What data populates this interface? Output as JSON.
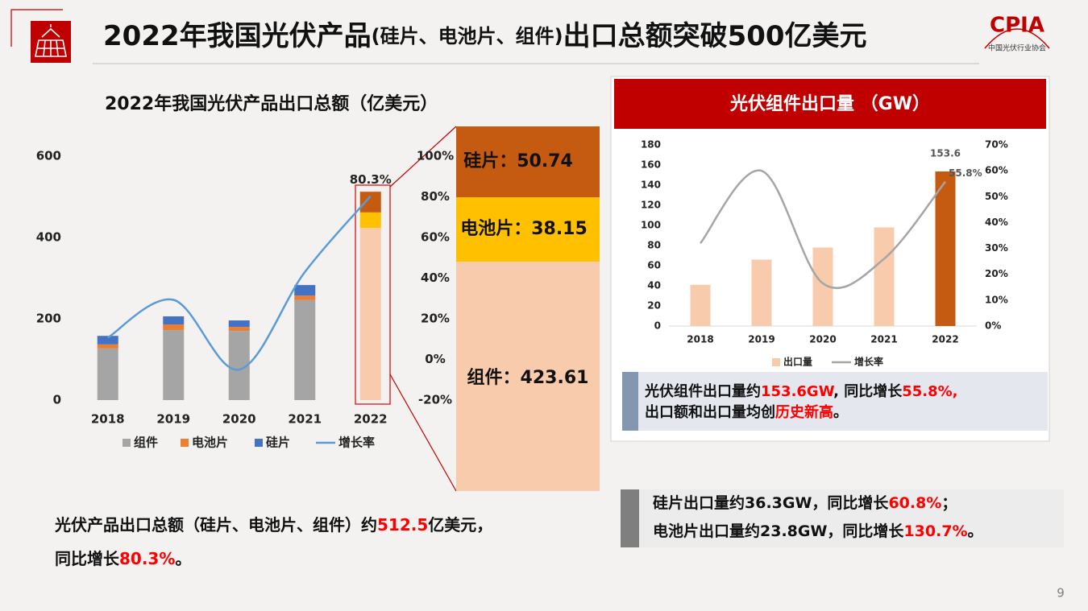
{
  "header": {
    "title_parts": [
      "2022年我国光伏产品",
      "(硅片、电池片、组件)",
      "出口总额突破500亿美元"
    ],
    "logo": "CPIA",
    "logo_subtitle": "中国光伏行业协会"
  },
  "chart_data": [
    {
      "type": "bar",
      "stacked": true,
      "title": "2022年我国光伏产品出口总额（亿美元）",
      "categories": [
        "2018",
        "2019",
        "2020",
        "2021",
        "2022"
      ],
      "series": [
        {
          "name": "组件",
          "color": "#a5a5a5",
          "colors": [
            "#a5a5a5",
            "#a5a5a5",
            "#a5a5a5",
            "#a5a5a5",
            "#f8cbad"
          ],
          "values": [
            127,
            172,
            170,
            246,
            423.61
          ]
        },
        {
          "name": "电池片",
          "color": "#ed7d31",
          "colors": [
            "#ed7d31",
            "#ed7d31",
            "#ed7d31",
            "#ed7d31",
            "#ffc000"
          ],
          "values": [
            10,
            14,
            10,
            11,
            38.15
          ]
        },
        {
          "name": "硅片",
          "color": "#4472c4",
          "colors": [
            "#4472c4",
            "#4472c4",
            "#4472c4",
            "#4472c4",
            "#c55a11"
          ],
          "values": [
            21,
            20,
            16,
            26,
            50.74
          ]
        },
        {
          "name": "增长率",
          "type": "line",
          "axis": "y2",
          "color": "#5b9bd5",
          "values": [
            10.7,
            29.3,
            -5,
            43,
            80.3
          ],
          "value_labels": [
            null,
            null,
            null,
            null,
            "80.3%"
          ]
        }
      ],
      "ylim": [
        0,
        600
      ],
      "yticks": [
        0,
        200,
        400,
        600
      ],
      "y2lim": [
        -20,
        100
      ],
      "y2ticks": [
        {
          "value": -20,
          "label": "-20%"
        },
        {
          "value": 0,
          "label": "0%"
        },
        {
          "value": 20,
          "label": "20%"
        },
        {
          "value": 40,
          "label": "40%"
        },
        {
          "value": 60,
          "label": "60%"
        },
        {
          "value": 80,
          "label": "80%"
        },
        {
          "value": 100,
          "label": "100%"
        }
      ],
      "grid": false,
      "legend": "bottom"
    },
    {
      "type": "bar",
      "title": "光伏组件出口量 （GW）",
      "categories": [
        "2018",
        "2019",
        "2020",
        "2021",
        "2022"
      ],
      "series": [
        {
          "name": "出口量",
          "color": "#f8cbad",
          "colors": [
            "#f8cbad",
            "#f8cbad",
            "#f8cbad",
            "#f8cbad",
            "#c55a11"
          ],
          "values": [
            41,
            66,
            78,
            98,
            153.6
          ],
          "value_labels": [
            null,
            null,
            null,
            null,
            "153.6"
          ]
        },
        {
          "name": "增长率",
          "type": "line",
          "axis": "y2",
          "color": "#a5a5a5",
          "values": [
            32,
            60,
            16.5,
            26,
            55.8
          ],
          "value_labels": [
            null,
            null,
            null,
            null,
            "55.8%"
          ]
        }
      ],
      "ylim": [
        0,
        180
      ],
      "yticks": [
        0,
        20,
        40,
        60,
        80,
        100,
        120,
        140,
        160,
        180
      ],
      "y2lim": [
        0,
        70
      ],
      "y2ticks": [
        {
          "value": 0,
          "label": "0%"
        },
        {
          "value": 10,
          "label": "10%"
        },
        {
          "value": 20,
          "label": "20%"
        },
        {
          "value": 30,
          "label": "30%"
        },
        {
          "value": 40,
          "label": "40%"
        },
        {
          "value": 50,
          "label": "50%"
        },
        {
          "value": 60,
          "label": "60%"
        },
        {
          "value": 70,
          "label": "70%"
        }
      ],
      "grid": false,
      "legend": "bottom"
    }
  ],
  "breakdown": {
    "segments": [
      {
        "label": "硅片：50.74",
        "color": "#c55a11"
      },
      {
        "label": "电池片：38.15",
        "color": "#ffc000"
      },
      {
        "label": "组件：423.61",
        "color": "#f8cbad"
      }
    ]
  },
  "notes": [
    {
      "lines": [
        [
          {
            "text": "光伏组件出口量约"
          },
          {
            "text": "153.6GW",
            "color": "#ff0000"
          },
          {
            "text": ", 同比增长"
          },
          {
            "text": "55.8%,",
            "color": "#ff0000"
          }
        ],
        [
          {
            "text": "出口额和出口量均创"
          },
          {
            "text": "历史新高",
            "color": "#ff0000"
          },
          {
            "text": "。"
          }
        ]
      ]
    },
    {
      "lines": [
        [
          {
            "text": "硅片出口量约36.3GW，同比增长"
          },
          {
            "text": "60.8%",
            "color": "#ff0000"
          },
          {
            "text": "；"
          }
        ],
        [
          {
            "text": "电池片出口量约23.8GW，同比增长"
          },
          {
            "text": "130.7%",
            "color": "#ff0000"
          },
          {
            "text": "。"
          }
        ]
      ]
    },
    {
      "lines": [
        [
          {
            "text": "光伏产品出口总额（硅片、电池片、组件）约"
          },
          {
            "text": "512.5",
            "color": "#ff0000"
          },
          {
            "text": "亿美元，"
          }
        ],
        [
          {
            "text": "同比增长"
          },
          {
            "text": "80.3%",
            "color": "#ff0000"
          },
          {
            "text": "。"
          }
        ]
      ]
    }
  ],
  "page_number": 9
}
